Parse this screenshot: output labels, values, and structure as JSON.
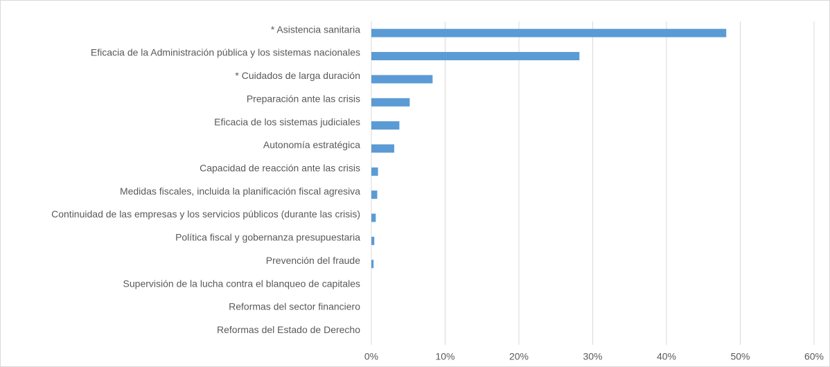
{
  "chart_data": {
    "type": "barh",
    "categories": [
      "* Asistencia sanitaria",
      "Eficacia de la Administración pública y los sistemas nacionales",
      "* Cuidados de larga duración",
      "Preparación ante las crisis",
      "Eficacia de los sistemas judiciales",
      "Autonomía estratégica",
      "Capacidad de reacción ante las crisis",
      "Medidas fiscales, incluida la planificación fiscal agresiva",
      "Continuidad de las empresas y los servicios públicos (durante las crisis)",
      "Política fiscal y gobernanza presupuestaria",
      "Prevención del fraude",
      "Supervisión de la lucha contra el blanqueo de capitales",
      "Reformas del sector financiero",
      "Reformas del Estado de Derecho"
    ],
    "values": [
      48.1,
      28.2,
      8.3,
      5.2,
      3.8,
      3.1,
      0.9,
      0.8,
      0.6,
      0.4,
      0.3,
      0,
      0,
      0
    ],
    "color": "#5b9bd5",
    "xlim": [
      0,
      60
    ],
    "xticks": [
      {
        "value": 0,
        "label": "0%"
      },
      {
        "value": 10,
        "label": "10%"
      },
      {
        "value": 20,
        "label": "20%"
      },
      {
        "value": 30,
        "label": "30%"
      },
      {
        "value": 40,
        "label": "40%"
      },
      {
        "value": 50,
        "label": "50%"
      },
      {
        "value": 60,
        "label": "60%"
      }
    ],
    "grid": true
  }
}
